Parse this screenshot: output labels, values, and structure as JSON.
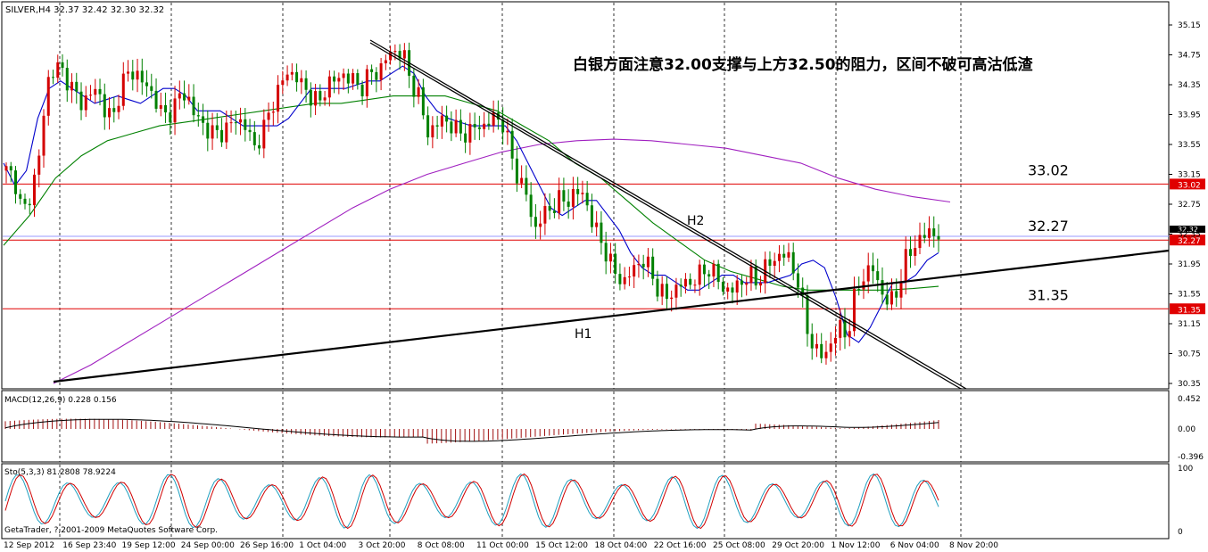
{
  "chart_data": {
    "type": "line",
    "header": "SILVER,H4  32.37 32.42 32.30 32.32",
    "annotation": "白银方面注意32.00支撑与上方32.50的阻力，区间不破可高沽低渣",
    "price_axis": [
      "35.15",
      "34.75",
      "34.35",
      "33.95",
      "33.55",
      "33.15",
      "32.75",
      "32.35",
      "31.95",
      "31.55",
      "31.15",
      "30.75",
      "30.35"
    ],
    "ylim": [
      30.3,
      35.25
    ],
    "levels": [
      {
        "label": "33.02",
        "value": 33.02,
        "tag": "33.02",
        "color": "#e00000"
      },
      {
        "label": "32.27",
        "value": 32.27,
        "tag": "32.27",
        "color": "#e00000"
      },
      {
        "label": "31.35",
        "value": 31.35,
        "tag": "31.35",
        "color": "#e00000"
      }
    ],
    "current_tag": "32.32",
    "trend_labels": [
      "H2",
      "H1"
    ],
    "x_labels": [
      "12 Sep 2012",
      "16 Sep 23:40",
      "19 Sep 12:00",
      "24 Sep 00:00",
      "26 Sep 16:00",
      "1 Oct 04:00",
      "3 Oct 20:00",
      "8 Oct 08:00",
      "11 Oct 00:00",
      "15 Oct 12:00",
      "18 Oct 04:00",
      "22 Oct 16:00",
      "25 Oct 08:00",
      "29 Oct 20:00",
      "1 Nov 12:00",
      "6 Nov 04:00",
      "8 Nov 20:00"
    ],
    "candles_close_path": [
      33.2,
      33.1,
      32.6,
      32.9,
      33.4,
      34.4,
      34.6,
      34.5,
      34.3,
      34.1,
      34.2,
      34.3,
      34.0,
      33.9,
      34.4,
      34.5,
      34.5,
      34.3,
      34.2,
      33.9,
      34.0,
      34.2,
      34.2,
      33.9,
      33.8,
      33.7,
      33.7,
      33.8,
      33.9,
      33.8,
      33.5,
      33.7,
      34.0,
      34.3,
      34.5,
      34.5,
      34.3,
      34.2,
      34.1,
      34.4,
      34.4,
      34.5,
      34.4,
      34.3,
      34.5,
      34.5,
      34.7,
      34.8,
      34.8,
      34.4,
      34.2,
      33.7,
      33.8,
      33.9,
      33.8,
      33.7,
      33.7,
      33.8,
      33.8,
      33.9,
      33.9,
      33.5,
      33.1,
      32.9,
      32.4,
      32.6,
      32.7,
      32.8,
      32.8,
      32.9,
      32.9,
      32.5,
      32.3,
      32.0,
      31.8,
      31.7,
      31.9,
      32.0,
      31.9,
      31.6,
      31.5,
      31.6,
      31.7,
      31.7,
      31.8,
      31.9,
      31.8,
      31.6,
      31.6,
      31.7,
      31.8,
      31.7,
      31.9,
      32.0,
      32.1,
      32.0,
      31.7,
      31.1,
      30.8,
      30.7,
      30.9,
      31.1,
      31.0,
      31.6,
      31.8,
      31.9,
      31.6,
      31.4,
      31.6,
      32.0,
      32.2,
      32.3,
      32.4,
      32.32
    ],
    "ma_fast": [
      33.3,
      33.0,
      33.2,
      33.9,
      34.3,
      34.4,
      34.3,
      34.2,
      34.1,
      34.15,
      34.2,
      34.15,
      34.1,
      34.2,
      34.3,
      34.3,
      34.2,
      34.0,
      34.0,
      34.0,
      33.9,
      33.8,
      33.8,
      33.8,
      33.8,
      33.9,
      34.1,
      34.3,
      34.3,
      34.3,
      34.3,
      34.35,
      34.4,
      34.4,
      34.5,
      34.6,
      34.5,
      34.2,
      34.0,
      33.9,
      33.85,
      33.8,
      33.8,
      33.8,
      33.8,
      33.6,
      33.3,
      33.0,
      32.7,
      32.6,
      32.7,
      32.8,
      32.8,
      32.6,
      32.4,
      32.1,
      31.9,
      31.8,
      31.8,
      31.7,
      31.6,
      31.6,
      31.7,
      31.8,
      31.8,
      31.7,
      31.7,
      31.7,
      31.75,
      31.8,
      31.95,
      32.0,
      31.9,
      31.5,
      31.0,
      30.9,
      31.1,
      31.4,
      31.7,
      31.7,
      31.8,
      32.0,
      32.1
    ],
    "ma_mid": [
      32.2,
      32.6,
      33.1,
      33.4,
      33.6,
      33.7,
      33.8,
      33.85,
      33.9,
      33.95,
      34.0,
      34.05,
      34.1,
      34.1,
      34.15,
      34.2,
      34.2,
      34.2,
      34.1,
      34.0,
      33.8,
      33.6,
      33.3,
      33.1,
      32.8,
      32.5,
      32.25,
      32.0,
      31.85,
      31.75,
      31.65,
      31.6,
      31.6,
      31.6,
      31.6,
      31.62,
      31.65
    ],
    "ma_slow": [
      30.35,
      30.6,
      30.9,
      31.2,
      31.5,
      31.8,
      32.1,
      32.4,
      32.7,
      32.95,
      33.15,
      33.3,
      33.45,
      33.55,
      33.6,
      33.62,
      33.6,
      33.55,
      33.5,
      33.4,
      33.3,
      33.1,
      32.95,
      32.85,
      32.78
    ],
    "macd": {
      "header": "MACD(12,26,9) 0.228 0.156",
      "axis": [
        "0.452",
        "0.00",
        "-0.396"
      ]
    },
    "stoch": {
      "header": "Sto(5,3,3) 81.2808 78.9224",
      "axis": [
        "100",
        "0"
      ]
    },
    "copyright": "GetaTrader, ?,2001-2009 MetaQuotes Software Corp."
  }
}
